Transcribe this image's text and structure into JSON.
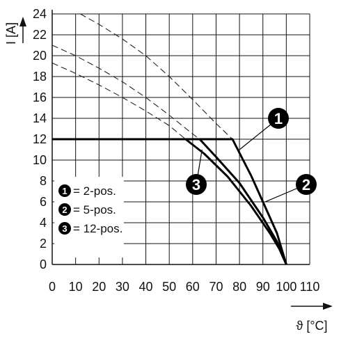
{
  "chart_data": {
    "type": "line",
    "xlabel": "ϑ [°C]",
    "ylabel": "I [A]",
    "xlim": [
      0,
      110
    ],
    "ylim": [
      0,
      24
    ],
    "x_ticks": [
      "0",
      "10",
      "20",
      "30",
      "40",
      "50",
      "60",
      "70",
      "80",
      "90",
      "100",
      "110"
    ],
    "y_ticks": [
      "0",
      "2",
      "4",
      "6",
      "8",
      "10",
      "12",
      "14",
      "16",
      "18",
      "20",
      "22",
      "24"
    ],
    "grid": true,
    "legend_position": "left-middle",
    "series": [
      {
        "name": "2-pos.",
        "badge": "1",
        "points": [
          [
            0,
            12
          ],
          [
            10,
            12
          ],
          [
            20,
            12
          ],
          [
            30,
            12
          ],
          [
            40,
            12
          ],
          [
            50,
            12
          ],
          [
            60,
            12
          ],
          [
            70,
            12
          ],
          [
            77,
            12
          ],
          [
            85,
            8.5
          ],
          [
            92,
            5
          ],
          [
            96,
            3
          ],
          [
            100,
            0
          ]
        ]
      },
      {
        "name": "5-pos.",
        "badge": "2",
        "points": [
          [
            0,
            12
          ],
          [
            10,
            12
          ],
          [
            20,
            12
          ],
          [
            30,
            12
          ],
          [
            40,
            12
          ],
          [
            50,
            12
          ],
          [
            60,
            12
          ],
          [
            63,
            12
          ],
          [
            70,
            10.3
          ],
          [
            80,
            7.8
          ],
          [
            90,
            4.5
          ],
          [
            96,
            2.2
          ],
          [
            100,
            0
          ]
        ]
      },
      {
        "name": "12-pos.",
        "badge": "3",
        "points": [
          [
            0,
            12
          ],
          [
            10,
            12
          ],
          [
            20,
            12
          ],
          [
            30,
            12
          ],
          [
            40,
            12
          ],
          [
            50,
            12
          ],
          [
            57,
            12
          ],
          [
            65,
            10.6
          ],
          [
            75,
            8.4
          ],
          [
            85,
            5.6
          ],
          [
            93,
            3
          ],
          [
            97,
            1.5
          ],
          [
            100,
            0
          ]
        ]
      }
    ],
    "derating_dashed": [
      {
        "badge": "1",
        "points": [
          [
            12,
            24
          ],
          [
            20,
            23
          ],
          [
            30,
            21.6
          ],
          [
            40,
            20
          ],
          [
            50,
            18
          ],
          [
            60,
            15.8
          ],
          [
            70,
            13.5
          ],
          [
            77,
            12
          ]
        ]
      },
      {
        "badge": "2",
        "points": [
          [
            0,
            21
          ],
          [
            10,
            20
          ],
          [
            20,
            18.8
          ],
          [
            30,
            17.5
          ],
          [
            40,
            16
          ],
          [
            50,
            14.3
          ],
          [
            60,
            12.5
          ],
          [
            63,
            12
          ]
        ]
      },
      {
        "badge": "3",
        "points": [
          [
            0,
            19.3
          ],
          [
            10,
            18.3
          ],
          [
            20,
            17.2
          ],
          [
            30,
            16
          ],
          [
            40,
            14.7
          ],
          [
            50,
            13.3
          ],
          [
            57,
            12
          ]
        ]
      }
    ],
    "callouts": [
      {
        "badge": "1",
        "at": [
          80,
          11
        ]
      },
      {
        "badge": "2",
        "at": [
          91,
          6
        ]
      },
      {
        "badge": "3",
        "at": [
          64,
          11
        ]
      }
    ]
  }
}
